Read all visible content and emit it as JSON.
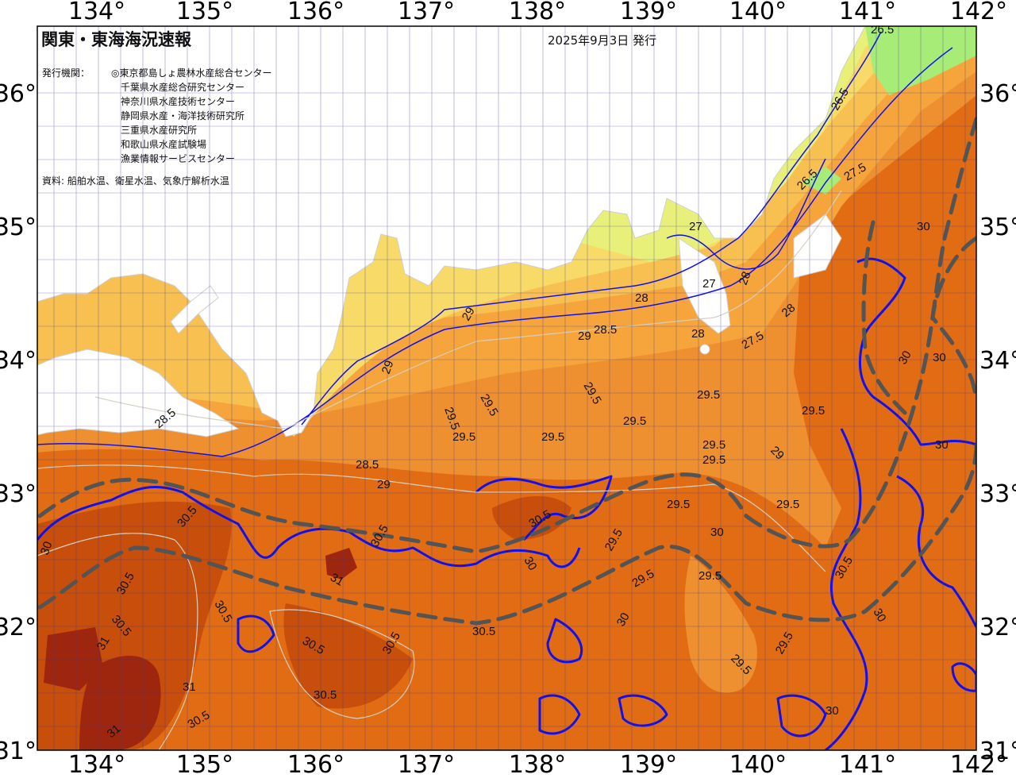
{
  "map": {
    "title": "関東・東海海況速報",
    "issue_date": "2025年9月3日 発行",
    "issuers_label": "発行機関：",
    "issuers": [
      "◎東京都島しょ農林水産総合センター",
      "千葉県水産総合研究センター",
      "神奈川県水産技術センター",
      "静岡県水産・海洋技術研究所",
      "三重県水産研究所",
      "和歌山県水産試験場",
      "漁業情報サービスセンター"
    ],
    "source": "資料: 船舶水温、衛星水温、気象庁解析水温",
    "longitude_labels": [
      "134°",
      "135°",
      "136°",
      "137°",
      "138°",
      "139°",
      "140°",
      "141°",
      "142°"
    ],
    "latitude_labels": [
      "36°",
      "35°",
      "34°",
      "33°",
      "32°",
      "31°"
    ],
    "isotherm_labels": [
      "26.5",
      "26.5",
      "26.5",
      "27",
      "27",
      "27.5",
      "27.5",
      "28",
      "28",
      "28",
      "28",
      "28.5",
      "28.5",
      "28.5",
      "29",
      "29",
      "29",
      "29",
      "29",
      "29.5",
      "29.5",
      "29.5",
      "29.5",
      "29.5",
      "29.5",
      "29.5",
      "29.5",
      "29.5",
      "29.5",
      "29.5",
      "29.5",
      "29.5",
      "29.5",
      "29.5",
      "29.5",
      "29.5",
      "30",
      "30",
      "30",
      "30",
      "30",
      "30",
      "30",
      "30",
      "30",
      "30",
      "30.5",
      "30.5",
      "30.5",
      "30.5",
      "30.5",
      "30.5",
      "30.5",
      "30.5",
      "30.5",
      "30.5",
      "30.5",
      "30.5",
      "31",
      "31",
      "31",
      "31"
    ],
    "colors": {
      "land": "#ffffff",
      "sst_26_5": "#a8ec78",
      "sst_27": "#e8f07a",
      "sst_28": "#f8da68",
      "sst_28_5": "#f8c050",
      "sst_29": "#f5a53c",
      "sst_29_5": "#ee9030",
      "sst_30": "#e16c14",
      "sst_30_5": "#c84e0c",
      "sst_31": "#9e260e",
      "isotherm_whole": "#1010ee",
      "isotherm_half": "#d8d0c0",
      "kuroshio_axis": "#545454",
      "graticule": "#3a3aa0"
    }
  }
}
